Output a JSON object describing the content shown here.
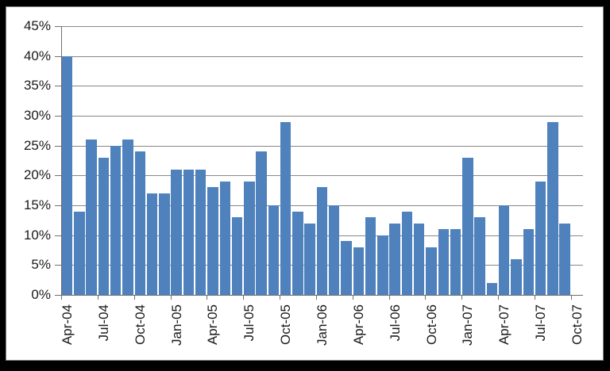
{
  "chart_data": {
    "type": "bar",
    "title": "",
    "categories": [
      "Apr-04",
      "May-04",
      "Jun-04",
      "Jul-04",
      "Aug-04",
      "Sep-04",
      "Oct-04",
      "Nov-04",
      "Dec-04",
      "Jan-05",
      "Feb-05",
      "Mar-05",
      "Apr-05",
      "May-05",
      "Jun-05",
      "Jul-05",
      "Aug-05",
      "Sep-05",
      "Oct-05",
      "Nov-05",
      "Dec-05",
      "Jan-06",
      "Feb-06",
      "Mar-06",
      "Apr-06",
      "May-06",
      "Jun-06",
      "Jul-06",
      "Aug-06",
      "Sep-06",
      "Oct-06",
      "Nov-06",
      "Dec-06",
      "Jan-07",
      "Feb-07",
      "Mar-07",
      "Apr-07",
      "May-07",
      "Jun-07",
      "Jul-07",
      "Aug-07",
      "Sep-07"
    ],
    "values": [
      40,
      14,
      26,
      23,
      25,
      26,
      24,
      17,
      17,
      21,
      21,
      21,
      18,
      19,
      13,
      19,
      24,
      15,
      29,
      14,
      12,
      18,
      15,
      9,
      8,
      13,
      10,
      12,
      14,
      12,
      8,
      11,
      11,
      23,
      13,
      2,
      15,
      6,
      11,
      19,
      29,
      12
    ],
    "value_unit": "%",
    "x_axis": {
      "extra_empty_slot": "Oct-07",
      "tick_label_interval": 3,
      "tick_labels": [
        "Apr-04",
        "Jul-04",
        "Oct-04",
        "Jan-05",
        "Apr-05",
        "Jul-05",
        "Oct-05",
        "Jan-06",
        "Apr-06",
        "Jul-06",
        "Oct-06",
        "Jan-07",
        "Apr-07",
        "Jul-07",
        "Oct-07"
      ],
      "label_rotation_deg": 90
    },
    "y_axis": {
      "min": 0,
      "max": 45,
      "step": 5,
      "tick_labels": [
        "0%",
        "5%",
        "10%",
        "15%",
        "20%",
        "25%",
        "30%",
        "35%",
        "40%",
        "45%"
      ]
    },
    "grid": true,
    "legend": false,
    "colors": {
      "bar": "#4F81BD",
      "gridline": "#878787",
      "axis": "#6F6F6F",
      "text": "#1a1a1a",
      "plot_background": "#FFFFFF",
      "chart_border": "#848484",
      "frame": "#000000"
    }
  }
}
